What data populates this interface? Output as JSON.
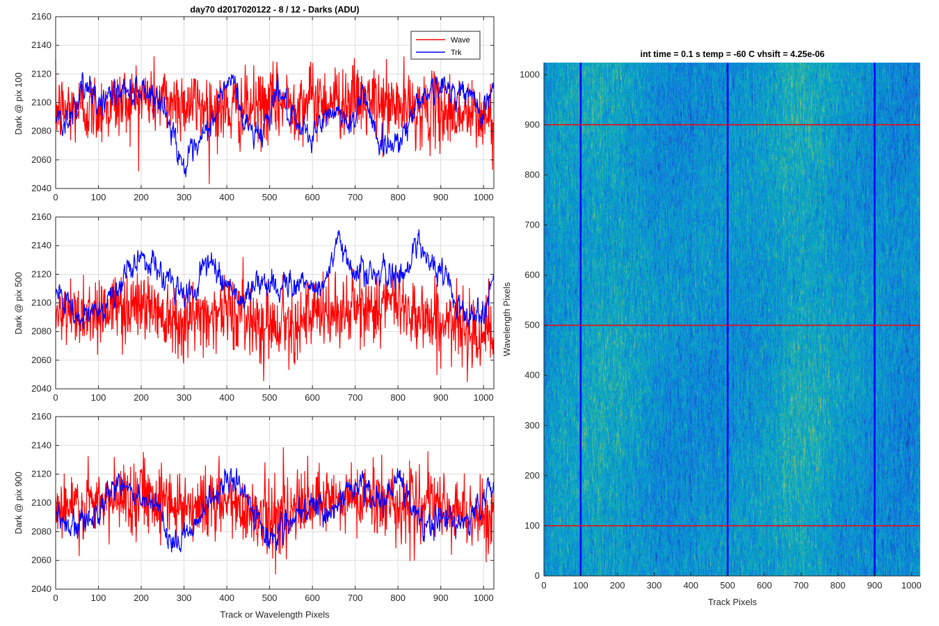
{
  "figure": {
    "suptitle": "day70 d2017020122 - 8 / 12 - Darks (ADU)",
    "shared_xlabel": "Track or Wavelength Pixels"
  },
  "chart_data": [
    {
      "type": "line",
      "title": "day70 d2017020122 - 8 / 12 - Darks (ADU)",
      "ylabel": "Dark @ pix 100",
      "xlim": [
        0,
        1024
      ],
      "ylim": [
        2040,
        2160
      ],
      "xticks": [
        0,
        100,
        200,
        300,
        400,
        500,
        600,
        700,
        800,
        900,
        1000
      ],
      "yticks": [
        2040,
        2060,
        2080,
        2100,
        2120,
        2140,
        2160
      ],
      "grid": true,
      "legend": "top-right",
      "series": [
        {
          "name": "Wave",
          "color": "#ff0000",
          "mean": 2098,
          "noise_sd": 17,
          "anchors_x": [
            0,
            100,
            200,
            300,
            400,
            500,
            600,
            700,
            800,
            900,
            1024
          ],
          "anchors_y": [
            2095,
            2096,
            2104,
            2100,
            2094,
            2098,
            2102,
            2101,
            2097,
            2094,
            2088
          ]
        },
        {
          "name": "Trk",
          "color": "#0000ff",
          "noise_sd": 4,
          "anchors_x": [
            0,
            30,
            60,
            100,
            150,
            200,
            240,
            280,
            300,
            330,
            370,
            400,
            420,
            440,
            480,
            520,
            560,
            600,
            650,
            700,
            720,
            760,
            800,
            820,
            860,
            900,
            950,
            1000,
            1024
          ],
          "anchors_y": [
            2090,
            2088,
            2110,
            2100,
            2108,
            2110,
            2105,
            2075,
            2055,
            2065,
            2090,
            2115,
            2112,
            2085,
            2078,
            2112,
            2080,
            2078,
            2095,
            2085,
            2110,
            2068,
            2075,
            2082,
            2108,
            2110,
            2108,
            2095,
            2112
          ]
        }
      ]
    },
    {
      "type": "line",
      "ylabel": "Dark @ pix 500",
      "xlim": [
        0,
        1024
      ],
      "ylim": [
        2040,
        2160
      ],
      "xticks": [
        0,
        100,
        200,
        300,
        400,
        500,
        600,
        700,
        800,
        900,
        1000
      ],
      "yticks": [
        2040,
        2060,
        2080,
        2100,
        2120,
        2140,
        2160
      ],
      "grid": true,
      "series": [
        {
          "name": "Wave",
          "color": "#ff0000",
          "noise_sd": 17,
          "anchors_x": [
            0,
            100,
            200,
            300,
            400,
            500,
            600,
            700,
            800,
            900,
            1024
          ],
          "anchors_y": [
            2090,
            2095,
            2100,
            2088,
            2095,
            2085,
            2090,
            2095,
            2100,
            2085,
            2080
          ]
        },
        {
          "name": "Trk",
          "color": "#0000ff",
          "noise_sd": 4,
          "anchors_x": [
            0,
            30,
            60,
            100,
            150,
            200,
            230,
            280,
            320,
            350,
            400,
            440,
            470,
            500,
            550,
            620,
            660,
            700,
            740,
            800,
            820,
            850,
            880,
            920,
            960,
            1000,
            1024
          ],
          "anchors_y": [
            2105,
            2098,
            2085,
            2098,
            2110,
            2135,
            2125,
            2110,
            2105,
            2130,
            2115,
            2100,
            2115,
            2110,
            2115,
            2110,
            2140,
            2125,
            2120,
            2118,
            2125,
            2145,
            2125,
            2115,
            2090,
            2095,
            2120
          ]
        }
      ]
    },
    {
      "type": "line",
      "ylabel": "Dark @ pix 900",
      "xlabel": "Track or Wavelength Pixels",
      "xlim": [
        0,
        1024
      ],
      "ylim": [
        2040,
        2160
      ],
      "xticks": [
        0,
        100,
        200,
        300,
        400,
        500,
        600,
        700,
        800,
        900,
        1000
      ],
      "yticks": [
        2040,
        2060,
        2080,
        2100,
        2120,
        2140,
        2160
      ],
      "grid": true,
      "series": [
        {
          "name": "Wave",
          "color": "#ff0000",
          "noise_sd": 17,
          "anchors_x": [
            0,
            100,
            200,
            300,
            400,
            500,
            600,
            700,
            800,
            900,
            1024
          ],
          "anchors_y": [
            2095,
            2098,
            2108,
            2098,
            2100,
            2090,
            2098,
            2103,
            2100,
            2096,
            2090
          ]
        },
        {
          "name": "Trk",
          "color": "#0000ff",
          "noise_sd": 4,
          "anchors_x": [
            0,
            40,
            80,
            120,
            150,
            180,
            220,
            250,
            270,
            300,
            330,
            360,
            400,
            430,
            460,
            500,
            540,
            570,
            600,
            650,
            700,
            730,
            760,
            800,
            830,
            860,
            900,
            950,
            1000,
            1024
          ],
          "anchors_y": [
            2090,
            2080,
            2090,
            2105,
            2118,
            2105,
            2098,
            2090,
            2065,
            2080,
            2088,
            2100,
            2118,
            2110,
            2095,
            2075,
            2085,
            2088,
            2098,
            2095,
            2112,
            2110,
            2098,
            2115,
            2100,
            2082,
            2090,
            2085,
            2100,
            2115
          ]
        }
      ]
    },
    {
      "type": "heatmap",
      "title": "int time = 0.1 s   temp = -60 C   vhsift = 4.25e-06",
      "xlabel": "Track Pixels",
      "ylabel": "Wavelength Pixels",
      "xlim": [
        0,
        1024
      ],
      "ylim": [
        0,
        1024
      ],
      "xticks": [
        0,
        100,
        200,
        300,
        400,
        500,
        600,
        700,
        800,
        900,
        1000
      ],
      "yticks": [
        0,
        100,
        200,
        300,
        400,
        500,
        600,
        700,
        800,
        900,
        1000
      ],
      "colormap": "parula",
      "vertical_markers": {
        "x": [
          100,
          500,
          900
        ],
        "color": "#0000ff"
      },
      "horizontal_markers": {
        "y": [
          100,
          500,
          900
        ],
        "color": "#ff0000"
      },
      "column_profile": {
        "x": [
          0,
          50,
          100,
          150,
          200,
          250,
          300,
          350,
          400,
          450,
          500,
          550,
          600,
          650,
          700,
          750,
          800,
          850,
          900,
          950,
          1024
        ],
        "level": [
          0.38,
          0.48,
          0.5,
          0.52,
          0.5,
          0.46,
          0.42,
          0.38,
          0.38,
          0.4,
          0.4,
          0.42,
          0.44,
          0.52,
          0.56,
          0.5,
          0.44,
          0.42,
          0.4,
          0.38,
          0.36
        ]
      }
    }
  ]
}
